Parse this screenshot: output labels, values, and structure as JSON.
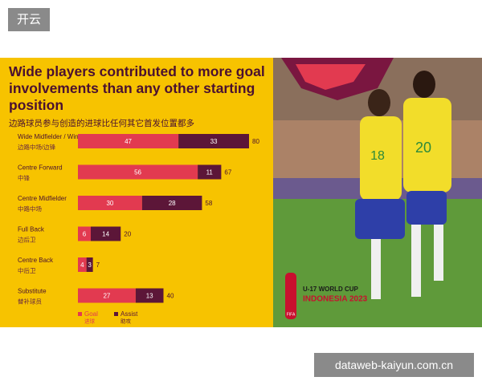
{
  "header": {
    "tag": "开云"
  },
  "watermark": "dataweb-kaiyun.com.cn",
  "photo": {
    "logo_line1": "U-17 WORLD CUP",
    "logo_line2": "INDONESIA 2023",
    "logo_badge": "FIFA",
    "player_left_number": "18",
    "player_right_number": "20"
  },
  "chart_data": {
    "type": "stacked-hbar",
    "title": "Wide players contributed to more goal involvements than any other starting position",
    "subtitle": "边路球员参与创造的进球比任何其它首发位置都多",
    "categories": [
      "Wide Midfielder / Winger",
      "Centre Forward",
      "Centre Midfielder",
      "Full Back",
      "Centre Back",
      "Substitute"
    ],
    "categories_zh": [
      "边路中场/边锋",
      "中锋",
      "中路中场",
      "边后卫",
      "中后卫",
      "替补球员"
    ],
    "series": [
      {
        "name": "Goal",
        "name_zh": "进球",
        "color": "#e23a50",
        "values": [
          47,
          56,
          30,
          6,
          4,
          27
        ]
      },
      {
        "name": "Assist",
        "name_zh": "助攻",
        "color": "#5c1638",
        "values": [
          33,
          11,
          28,
          14,
          3,
          13
        ]
      }
    ],
    "totals": [
      80,
      67,
      58,
      20,
      7,
      40
    ]
  }
}
